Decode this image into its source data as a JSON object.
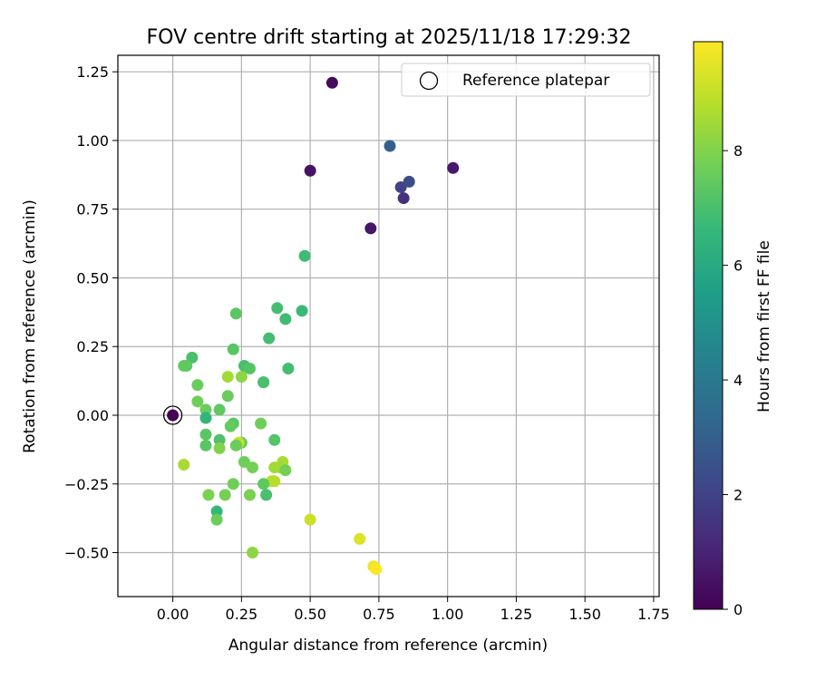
{
  "chart_data": {
    "type": "scatter",
    "title": "FOV centre drift starting at 2025/11/18 17:29:32",
    "xlabel": "Angular distance from reference (arcmin)",
    "ylabel": "Rotation from reference (arcmin)",
    "xlim": [
      -0.2,
      1.77
    ],
    "ylim": [
      -0.66,
      1.31
    ],
    "xticks": [
      0.0,
      0.25,
      0.5,
      0.75,
      1.0,
      1.25,
      1.5,
      1.75
    ],
    "xtick_labels": [
      "0.00",
      "0.25",
      "0.50",
      "0.75",
      "1.00",
      "1.25",
      "1.50",
      "1.75"
    ],
    "yticks": [
      -0.5,
      -0.25,
      0.0,
      0.25,
      0.5,
      0.75,
      1.0,
      1.25
    ],
    "ytick_labels": [
      "−0.50",
      "−0.25",
      "0.00",
      "0.25",
      "0.50",
      "0.75",
      "1.00",
      "1.25"
    ],
    "grid": true,
    "legend": {
      "position": "top-right",
      "entries": [
        "Reference platepar"
      ]
    },
    "reference_point": {
      "x": 0.0,
      "y": 0.0
    },
    "colorbar": {
      "label": "Hours from first FF file",
      "range": [
        0,
        9.9
      ],
      "ticks": [
        0,
        2,
        4,
        6,
        8
      ],
      "tick_labels": [
        "0",
        "2",
        "4",
        "6",
        "8"
      ],
      "colormap": "viridis",
      "color_stops": [
        "#440154",
        "#482878",
        "#3e4989",
        "#31688e",
        "#26828e",
        "#1f9e89",
        "#35b779",
        "#6ece58",
        "#b5de2b",
        "#fde725"
      ]
    },
    "points": [
      {
        "x": 0.0,
        "y": 0.0,
        "h": 0.0
      },
      {
        "x": 0.58,
        "y": 1.21,
        "h": 0.3
      },
      {
        "x": 0.5,
        "y": 0.89,
        "h": 0.5
      },
      {
        "x": 1.02,
        "y": 0.9,
        "h": 0.7
      },
      {
        "x": 0.72,
        "y": 0.68,
        "h": 0.6
      },
      {
        "x": 0.84,
        "y": 0.79,
        "h": 1.4
      },
      {
        "x": 0.83,
        "y": 0.83,
        "h": 2.0
      },
      {
        "x": 0.86,
        "y": 0.85,
        "h": 2.3
      },
      {
        "x": 0.79,
        "y": 0.98,
        "h": 3.0
      },
      {
        "x": 0.48,
        "y": 0.58,
        "h": 6.8
      },
      {
        "x": 0.38,
        "y": 0.39,
        "h": 6.9
      },
      {
        "x": 0.47,
        "y": 0.38,
        "h": 6.7
      },
      {
        "x": 0.41,
        "y": 0.35,
        "h": 6.8
      },
      {
        "x": 0.23,
        "y": 0.37,
        "h": 7.3
      },
      {
        "x": 0.35,
        "y": 0.28,
        "h": 6.9
      },
      {
        "x": 0.22,
        "y": 0.24,
        "h": 7.3
      },
      {
        "x": 0.07,
        "y": 0.21,
        "h": 7.0
      },
      {
        "x": 0.04,
        "y": 0.18,
        "h": 7.5
      },
      {
        "x": 0.05,
        "y": 0.18,
        "h": 7.4
      },
      {
        "x": 0.26,
        "y": 0.18,
        "h": 7.0
      },
      {
        "x": 0.28,
        "y": 0.17,
        "h": 7.2
      },
      {
        "x": 0.42,
        "y": 0.17,
        "h": 6.9
      },
      {
        "x": 0.2,
        "y": 0.14,
        "h": 8.5
      },
      {
        "x": 0.25,
        "y": 0.14,
        "h": 8.2
      },
      {
        "x": 0.33,
        "y": 0.12,
        "h": 6.8
      },
      {
        "x": 0.33,
        "y": 0.12,
        "h": 7.0
      },
      {
        "x": 0.09,
        "y": 0.11,
        "h": 7.6
      },
      {
        "x": 0.09,
        "y": 0.05,
        "h": 7.7
      },
      {
        "x": 0.2,
        "y": 0.07,
        "h": 7.6
      },
      {
        "x": 0.17,
        "y": 0.02,
        "h": 7.4
      },
      {
        "x": 0.12,
        "y": 0.02,
        "h": 7.6
      },
      {
        "x": 0.12,
        "y": -0.01,
        "h": 6.5
      },
      {
        "x": 0.22,
        "y": -0.03,
        "h": 7.3
      },
      {
        "x": 0.21,
        "y": -0.04,
        "h": 7.5
      },
      {
        "x": 0.32,
        "y": -0.03,
        "h": 7.7
      },
      {
        "x": 0.12,
        "y": -0.07,
        "h": 7.3
      },
      {
        "x": 0.17,
        "y": -0.09,
        "h": 7.1
      },
      {
        "x": 0.37,
        "y": -0.09,
        "h": 7.2
      },
      {
        "x": 0.25,
        "y": -0.1,
        "h": 7.5
      },
      {
        "x": 0.24,
        "y": -0.1,
        "h": 9.0
      },
      {
        "x": 0.23,
        "y": -0.11,
        "h": 7.6
      },
      {
        "x": 0.12,
        "y": -0.11,
        "h": 7.3
      },
      {
        "x": 0.17,
        "y": -0.12,
        "h": 8.0
      },
      {
        "x": 0.26,
        "y": -0.17,
        "h": 7.7
      },
      {
        "x": 0.29,
        "y": -0.19,
        "h": 7.8
      },
      {
        "x": 0.4,
        "y": -0.17,
        "h": 8.6
      },
      {
        "x": 0.39,
        "y": -0.19,
        "h": 8.4
      },
      {
        "x": 0.37,
        "y": -0.19,
        "h": 8.5
      },
      {
        "x": 0.41,
        "y": -0.2,
        "h": 7.8
      },
      {
        "x": 0.04,
        "y": -0.18,
        "h": 8.6
      },
      {
        "x": 0.36,
        "y": -0.24,
        "h": 8.9
      },
      {
        "x": 0.37,
        "y": -0.24,
        "h": 8.8
      },
      {
        "x": 0.33,
        "y": -0.25,
        "h": 7.4
      },
      {
        "x": 0.22,
        "y": -0.25,
        "h": 7.7
      },
      {
        "x": 0.13,
        "y": -0.29,
        "h": 7.9
      },
      {
        "x": 0.19,
        "y": -0.29,
        "h": 7.8
      },
      {
        "x": 0.28,
        "y": -0.29,
        "h": 7.9
      },
      {
        "x": 0.34,
        "y": -0.29,
        "h": 7.0
      },
      {
        "x": 0.16,
        "y": -0.35,
        "h": 6.6
      },
      {
        "x": 0.16,
        "y": -0.38,
        "h": 7.6
      },
      {
        "x": 0.5,
        "y": -0.38,
        "h": 9.1
      },
      {
        "x": 0.29,
        "y": -0.5,
        "h": 8.2
      },
      {
        "x": 0.68,
        "y": -0.45,
        "h": 9.4
      },
      {
        "x": 0.73,
        "y": -0.55,
        "h": 9.7
      },
      {
        "x": 0.74,
        "y": -0.56,
        "h": 9.9
      }
    ]
  }
}
